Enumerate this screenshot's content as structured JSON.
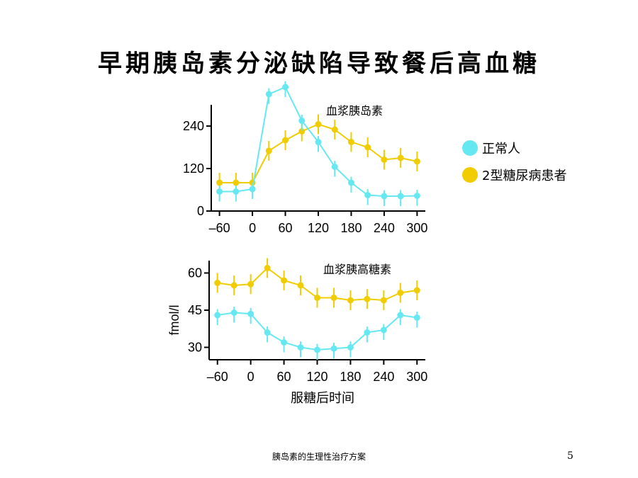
{
  "title": "早期胰岛素分泌缺陷导致餐后高血糖",
  "legend": [
    {
      "label": "正常人",
      "color": "#66e8f2"
    },
    {
      "label": "2型糖尿病患者",
      "color": "#f0cc00"
    }
  ],
  "footer": "胰岛素的生理性治疗方案",
  "page_number": "5",
  "chart_data": [
    {
      "type": "line",
      "title": "血浆胰岛素",
      "xlabel": "",
      "ylabel": "",
      "x": [
        -60,
        -30,
        0,
        30,
        60,
        90,
        120,
        150,
        180,
        210,
        240,
        270,
        300
      ],
      "xlim": [
        -75,
        315
      ],
      "ylim": [
        0,
        300
      ],
      "xticks": [
        "–60",
        "0",
        "60",
        "120",
        "180",
        "240",
        "300"
      ],
      "xtick_values": [
        -60,
        0,
        60,
        120,
        180,
        240,
        300
      ],
      "yticks": [
        "0",
        "120",
        "240"
      ],
      "ytick_values": [
        0,
        120,
        240
      ],
      "series": [
        {
          "name": "正常人",
          "color": "#66e8f2",
          "values": [
            55,
            55,
            62,
            330,
            350,
            255,
            195,
            125,
            80,
            45,
            42,
            42,
            43
          ]
        },
        {
          "name": "2型糖尿病患者",
          "color": "#f0cc00",
          "values": [
            80,
            80,
            80,
            170,
            200,
            225,
            245,
            230,
            195,
            180,
            145,
            150,
            140
          ]
        }
      ]
    },
    {
      "type": "line",
      "title": "血浆胰高糖素",
      "xlabel": "服糖后时间",
      "ylabel": "fmol/l",
      "x": [
        -60,
        -30,
        0,
        30,
        60,
        90,
        120,
        150,
        180,
        210,
        240,
        270,
        300
      ],
      "xlim": [
        -75,
        315
      ],
      "ylim": [
        25,
        65
      ],
      "xticks": [
        "–60",
        "0",
        "60",
        "120",
        "180",
        "240",
        "300"
      ],
      "xtick_values": [
        -60,
        0,
        60,
        120,
        180,
        240,
        300
      ],
      "yticks": [
        "30",
        "45",
        "60"
      ],
      "ytick_values": [
        30,
        45,
        60
      ],
      "series": [
        {
          "name": "正常人",
          "color": "#66e8f2",
          "values": [
            43,
            44,
            43.5,
            36,
            32,
            30,
            29,
            29.5,
            30,
            36,
            37,
            43,
            42
          ]
        },
        {
          "name": "2型糖尿病患者",
          "color": "#f0cc00",
          "values": [
            56,
            55,
            55.5,
            62,
            57,
            55,
            50,
            50,
            49,
            49.5,
            49,
            52,
            53
          ]
        }
      ]
    }
  ]
}
